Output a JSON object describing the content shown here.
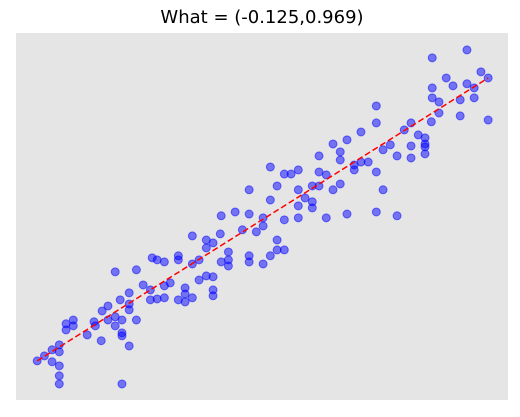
{
  "chart_data": {
    "type": "scatter",
    "title": "What = (-0.125,0.969)",
    "xlim": [
      -0.047,
      1.044
    ],
    "ylim": [
      -0.259,
      0.998
    ],
    "background": "#e5e5e5",
    "series": [
      {
        "color": "#0000ff",
        "x": [
          0,
          0.016,
          0.033,
          0.033,
          0.049,
          0.049,
          0.049,
          0.049,
          0.049,
          0.064,
          0.064,
          0.08,
          0.08,
          0.111,
          0.126,
          0.129,
          0.142,
          0.144,
          0.157,
          0.157,
          0.173,
          0.173,
          0.173,
          0.184,
          0.188,
          0.188,
          0.188,
          0.188,
          0.204,
          0.204,
          0.204,
          0.204,
          0.22,
          0.22,
          0.235,
          0.251,
          0.251,
          0.255,
          0.266,
          0.266,
          0.282,
          0.282,
          0.282,
          0.295,
          0.313,
          0.313,
          0.313,
          0.328,
          0.328,
          0.328,
          0.344,
          0.344,
          0.344,
          0.359,
          0.359,
          0.375,
          0.375,
          0.375,
          0.39,
          0.39,
          0.39,
          0.39,
          0.406,
          0.408,
          0.408,
          0.424,
          0.424,
          0.424,
          0.439,
          0.455,
          0.47,
          0.47,
          0.47,
          0.47,
          0.486,
          0.501,
          0.501,
          0.501,
          0.517,
          0.517,
          0.517,
          0.532,
          0.532,
          0.532,
          0.548,
          0.548,
          0.548,
          0.563,
          0.579,
          0.579,
          0.579,
          0.579,
          0.594,
          0.61,
          0.61,
          0.61,
          0.625,
          0.625,
          0.625,
          0.641,
          0.641,
          0.656,
          0.656,
          0.672,
          0.672,
          0.672,
          0.687,
          0.687,
          0.703,
          0.703,
          0.718,
          0.718,
          0.734,
          0.752,
          0.752,
          0.752,
          0.752,
          0.767,
          0.767,
          0.783,
          0.798,
          0.798,
          0.814,
          0.829,
          0.829,
          0.829,
          0.845,
          0.86,
          0.86,
          0.86,
          0.86,
          0.876,
          0.876,
          0.876,
          0.891,
          0.907,
          0.922,
          0.938,
          0.938,
          0.953,
          0.969,
          0.969,
          0.984,
          1.0,
          1.0,
          0.953,
          0.891,
          0.874
        ],
        "values": [
          -0.125,
          -0.108,
          -0.128,
          -0.087,
          -0.204,
          -0.176,
          -0.142,
          -0.094,
          -0.07,
          -0.019,
          0.002,
          0.015,
          -0.005,
          -0.036,
          0.009,
          -0.005,
          -0.056,
          0.046,
          0.063,
          0.015,
          0.026,
          0.18,
          -0.005,
          0.084,
          -0.029,
          -0.039,
          -0.204,
          0.015,
          0.07,
          -0.074,
          0.05,
          0.108,
          0.015,
          0.187,
          0.135,
          0.084,
          0.118,
          0.228,
          0.087,
          0.221,
          0.214,
          0.132,
          0.091,
          0.142,
          0.221,
          0.235,
          0.084,
          0.125,
          0.104,
          0.077,
          0.091,
          0.303,
          0.207,
          0.152,
          0.221,
          0.289,
          0.166,
          0.262,
          0.118,
          0.163,
          0.279,
          0.098,
          0.31,
          0.372,
          0.214,
          0.248,
          0.2,
          0.221,
          0.385,
          0.324,
          0.378,
          0.461,
          0.235,
          0.214,
          0.317,
          0.365,
          0.207,
          0.337,
          0.235,
          0.426,
          0.539,
          0.474,
          0.289,
          0.255,
          0.358,
          0.515,
          0.255,
          0.515,
          0.529,
          0.365,
          0.461,
          0.406,
          0.433,
          0.474,
          0.42,
          0.399,
          0.577,
          0.522,
          0.474,
          0.365,
          0.512,
          0.461,
          0.618,
          0.481,
          0.591,
          0.563,
          0.378,
          0.632,
          0.546,
          0.529,
          0.659,
          0.556,
          0.556,
          0.748,
          0.69,
          0.522,
          0.385,
          0.598,
          0.461,
          0.615,
          0.577,
          0.372,
          0.666,
          0.69,
          0.57,
          0.611,
          0.649,
          0.608,
          0.639,
          0.618,
          0.584,
          0.913,
          0.81,
          0.776,
          0.724,
          0.844,
          0.817,
          0.714,
          0.769,
          0.94,
          0.776,
          0.81,
          0.865,
          0.7,
          0.844,
          0.824,
          0.762,
          0.694
        ]
      }
    ],
    "fit_line": {
      "color": "#ff0000",
      "x": [
        0,
        1
      ],
      "values": [
        -0.125,
        0.844
      ]
    }
  }
}
